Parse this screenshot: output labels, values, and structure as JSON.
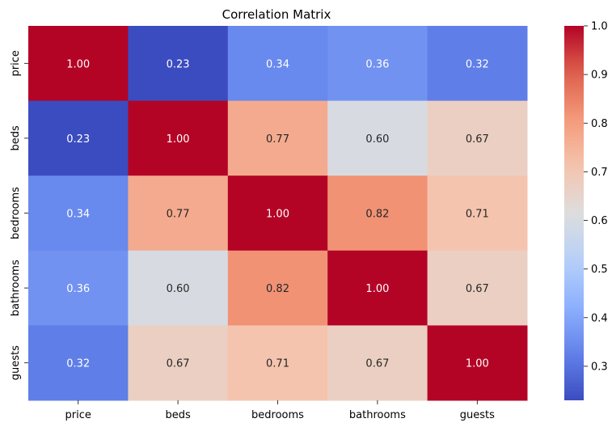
{
  "chart_data": {
    "type": "heatmap",
    "title": "Correlation Matrix",
    "x_labels": [
      "price",
      "beds",
      "bedrooms",
      "bathrooms",
      "guests"
    ],
    "y_labels": [
      "price",
      "beds",
      "bedrooms",
      "bathrooms",
      "guests"
    ],
    "values": [
      [
        1.0,
        0.23,
        0.34,
        0.36,
        0.32
      ],
      [
        0.23,
        1.0,
        0.77,
        0.6,
        0.67
      ],
      [
        0.34,
        0.77,
        1.0,
        0.82,
        0.71
      ],
      [
        0.36,
        0.6,
        0.82,
        1.0,
        0.67
      ],
      [
        0.32,
        0.67,
        0.71,
        0.67,
        1.0
      ]
    ],
    "cell_labels": [
      [
        "1.00",
        "0.23",
        "0.34",
        "0.36",
        "0.32"
      ],
      [
        "0.23",
        "1.00",
        "0.77",
        "0.60",
        "0.67"
      ],
      [
        "0.34",
        "0.77",
        "1.00",
        "0.82",
        "0.71"
      ],
      [
        "0.36",
        "0.60",
        "0.82",
        "1.00",
        "0.67"
      ],
      [
        "0.32",
        "0.67",
        "0.71",
        "0.67",
        "1.00"
      ]
    ],
    "colormap": "coolwarm",
    "vmin": 0.23,
    "vmax": 1.0,
    "colorbar_ticks": [
      0.3,
      0.4,
      0.5,
      0.6,
      0.7,
      0.8,
      0.9,
      1.0
    ],
    "colorbar_tick_labels": [
      "0.3",
      "0.4",
      "0.5",
      "0.6",
      "0.7",
      "0.8",
      "0.9",
      "1.0"
    ],
    "colorbar_placement": "right",
    "grid": false
  }
}
